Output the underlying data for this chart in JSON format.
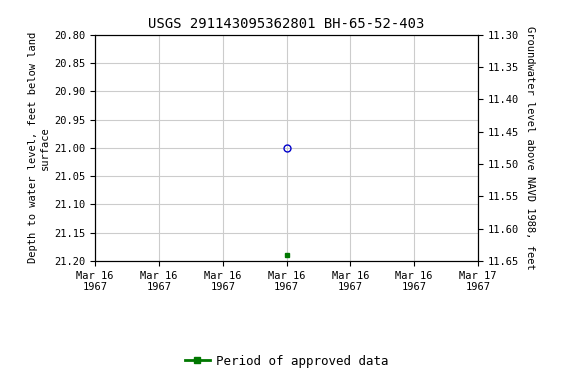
{
  "title": "USGS 291143095362801 BH-65-52-403",
  "ylabel_left": "Depth to water level, feet below land\nsurface",
  "ylabel_right": "Groundwater level above NAVD 1988, feet",
  "ylim_left_top": 20.8,
  "ylim_left_bottom": 21.2,
  "ylim_right_top": 11.65,
  "ylim_right_bottom": 11.3,
  "yticks_left": [
    20.8,
    20.85,
    20.9,
    20.95,
    21.0,
    21.05,
    21.1,
    21.15,
    21.2
  ],
  "yticks_right": [
    11.65,
    11.6,
    11.55,
    11.5,
    11.45,
    11.4,
    11.35,
    11.3
  ],
  "blue_circle_hour": 12,
  "blue_circle_value": 21.0,
  "green_square_hour": 12,
  "green_square_value": 21.19,
  "blue_circle_color": "#0000cc",
  "green_square_color": "#007700",
  "grid_color": "#cccccc",
  "background_color": "#ffffff",
  "title_fontsize": 10,
  "axis_label_fontsize": 7.5,
  "tick_fontsize": 7.5,
  "legend_fontsize": 9,
  "legend_label": "Period of approved data",
  "x_tick_hours": [
    0,
    4,
    8,
    12,
    16,
    20,
    24
  ],
  "x_tick_labels": [
    "Mar 16\n1967",
    "Mar 16\n1967",
    "Mar 16\n1967",
    "Mar 16\n1967",
    "Mar 16\n1967",
    "Mar 16\n1967",
    "Mar 17\n1967"
  ],
  "xlim": [
    0,
    24
  ]
}
